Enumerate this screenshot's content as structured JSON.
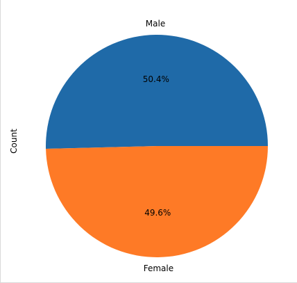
{
  "chart_data": {
    "type": "pie",
    "title": "",
    "ylabel": "Count",
    "start_angle_deg": 0,
    "direction": "counterclockwise",
    "slices": [
      {
        "label": "Male",
        "percent_label": "50.4%",
        "value": 50.4,
        "color": "#1f6aa8"
      },
      {
        "label": "Female",
        "percent_label": "49.6%",
        "value": 49.6,
        "color": "#fe7a26"
      }
    ]
  }
}
